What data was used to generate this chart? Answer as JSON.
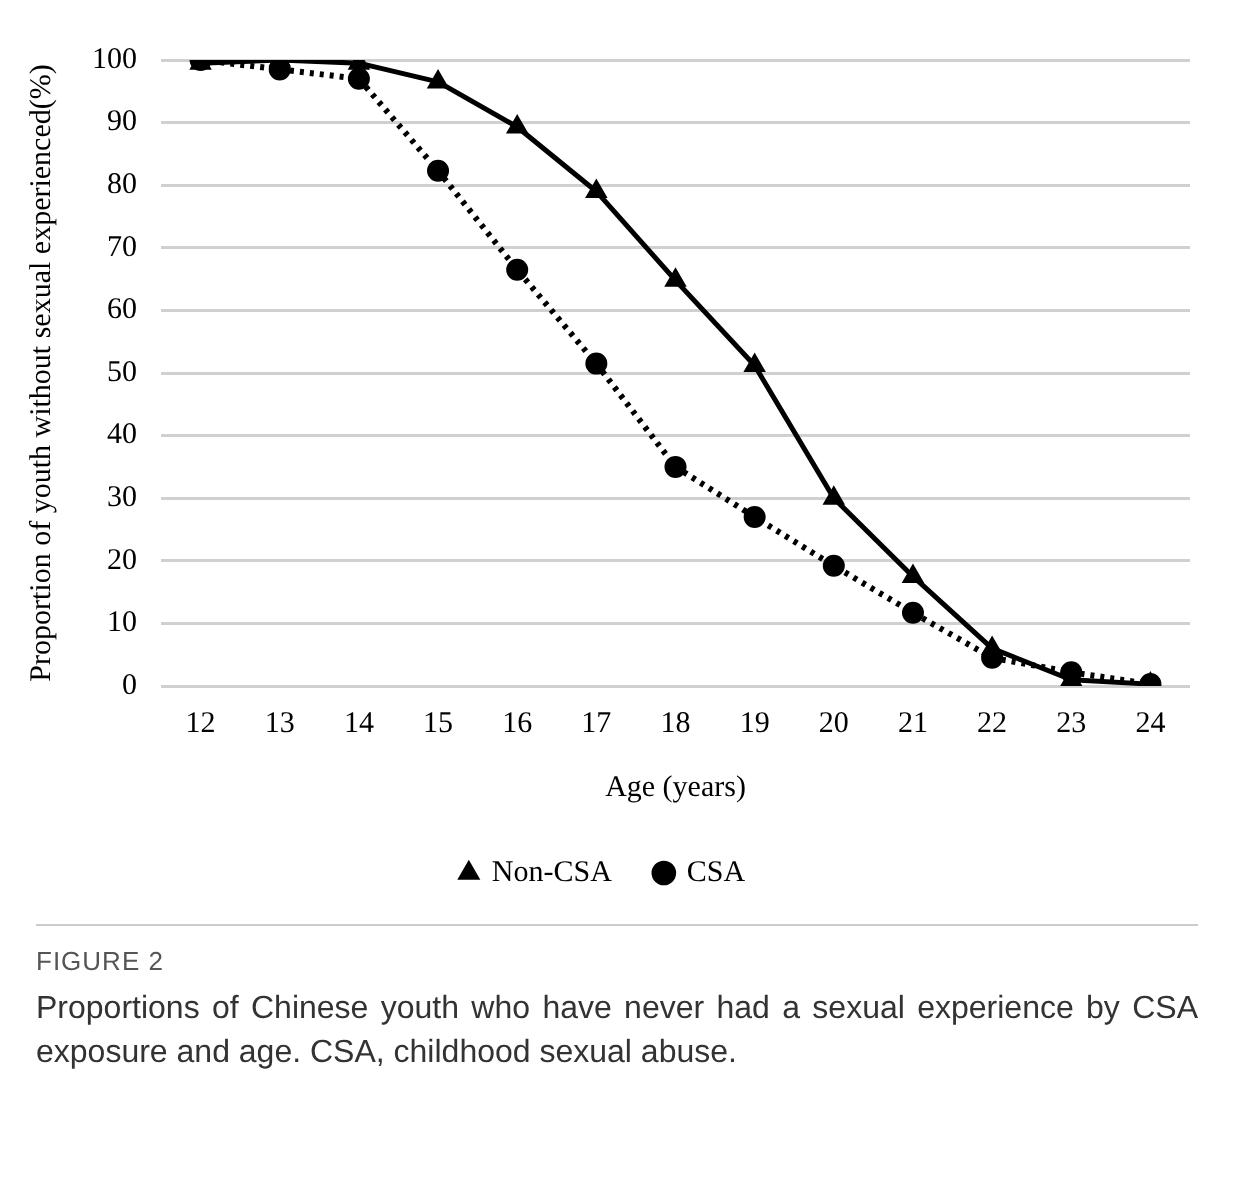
{
  "chart_data": {
    "type": "line",
    "xlabel": "Age (years)",
    "ylabel": "Proportion of youth without sexual experienced(%)",
    "categories": [
      "12",
      "13",
      "14",
      "15",
      "16",
      "17",
      "18",
      "19",
      "20",
      "21",
      "22",
      "23",
      "24"
    ],
    "series": [
      {
        "name": "Non-CSA",
        "color": "#000000",
        "marker": "triangle",
        "line_style": "solid",
        "values": [
          99.5,
          100,
          99.5,
          96.5,
          89.3,
          79,
          64.8,
          51.2,
          30,
          17.5,
          6,
          1,
          0.3
        ]
      },
      {
        "name": "CSA",
        "color": "#000000",
        "marker": "circle",
        "line_style": "dotted",
        "values": [
          100,
          98.5,
          97,
          82.3,
          66.5,
          51.5,
          35,
          27,
          19.2,
          11.7,
          4.5,
          2.2,
          0.3
        ]
      }
    ],
    "ylim": [
      0,
      100
    ],
    "yticks": [
      0,
      10,
      20,
      30,
      40,
      50,
      60,
      70,
      80,
      90,
      100
    ],
    "grid": "y",
    "legend": "bottom",
    "annotations": [
      "FIGURE 2",
      "Proportions of Chinese youth who have never had a sexual experience by CSA exposure and age. CSA, childhood sexual abuse."
    ]
  }
}
